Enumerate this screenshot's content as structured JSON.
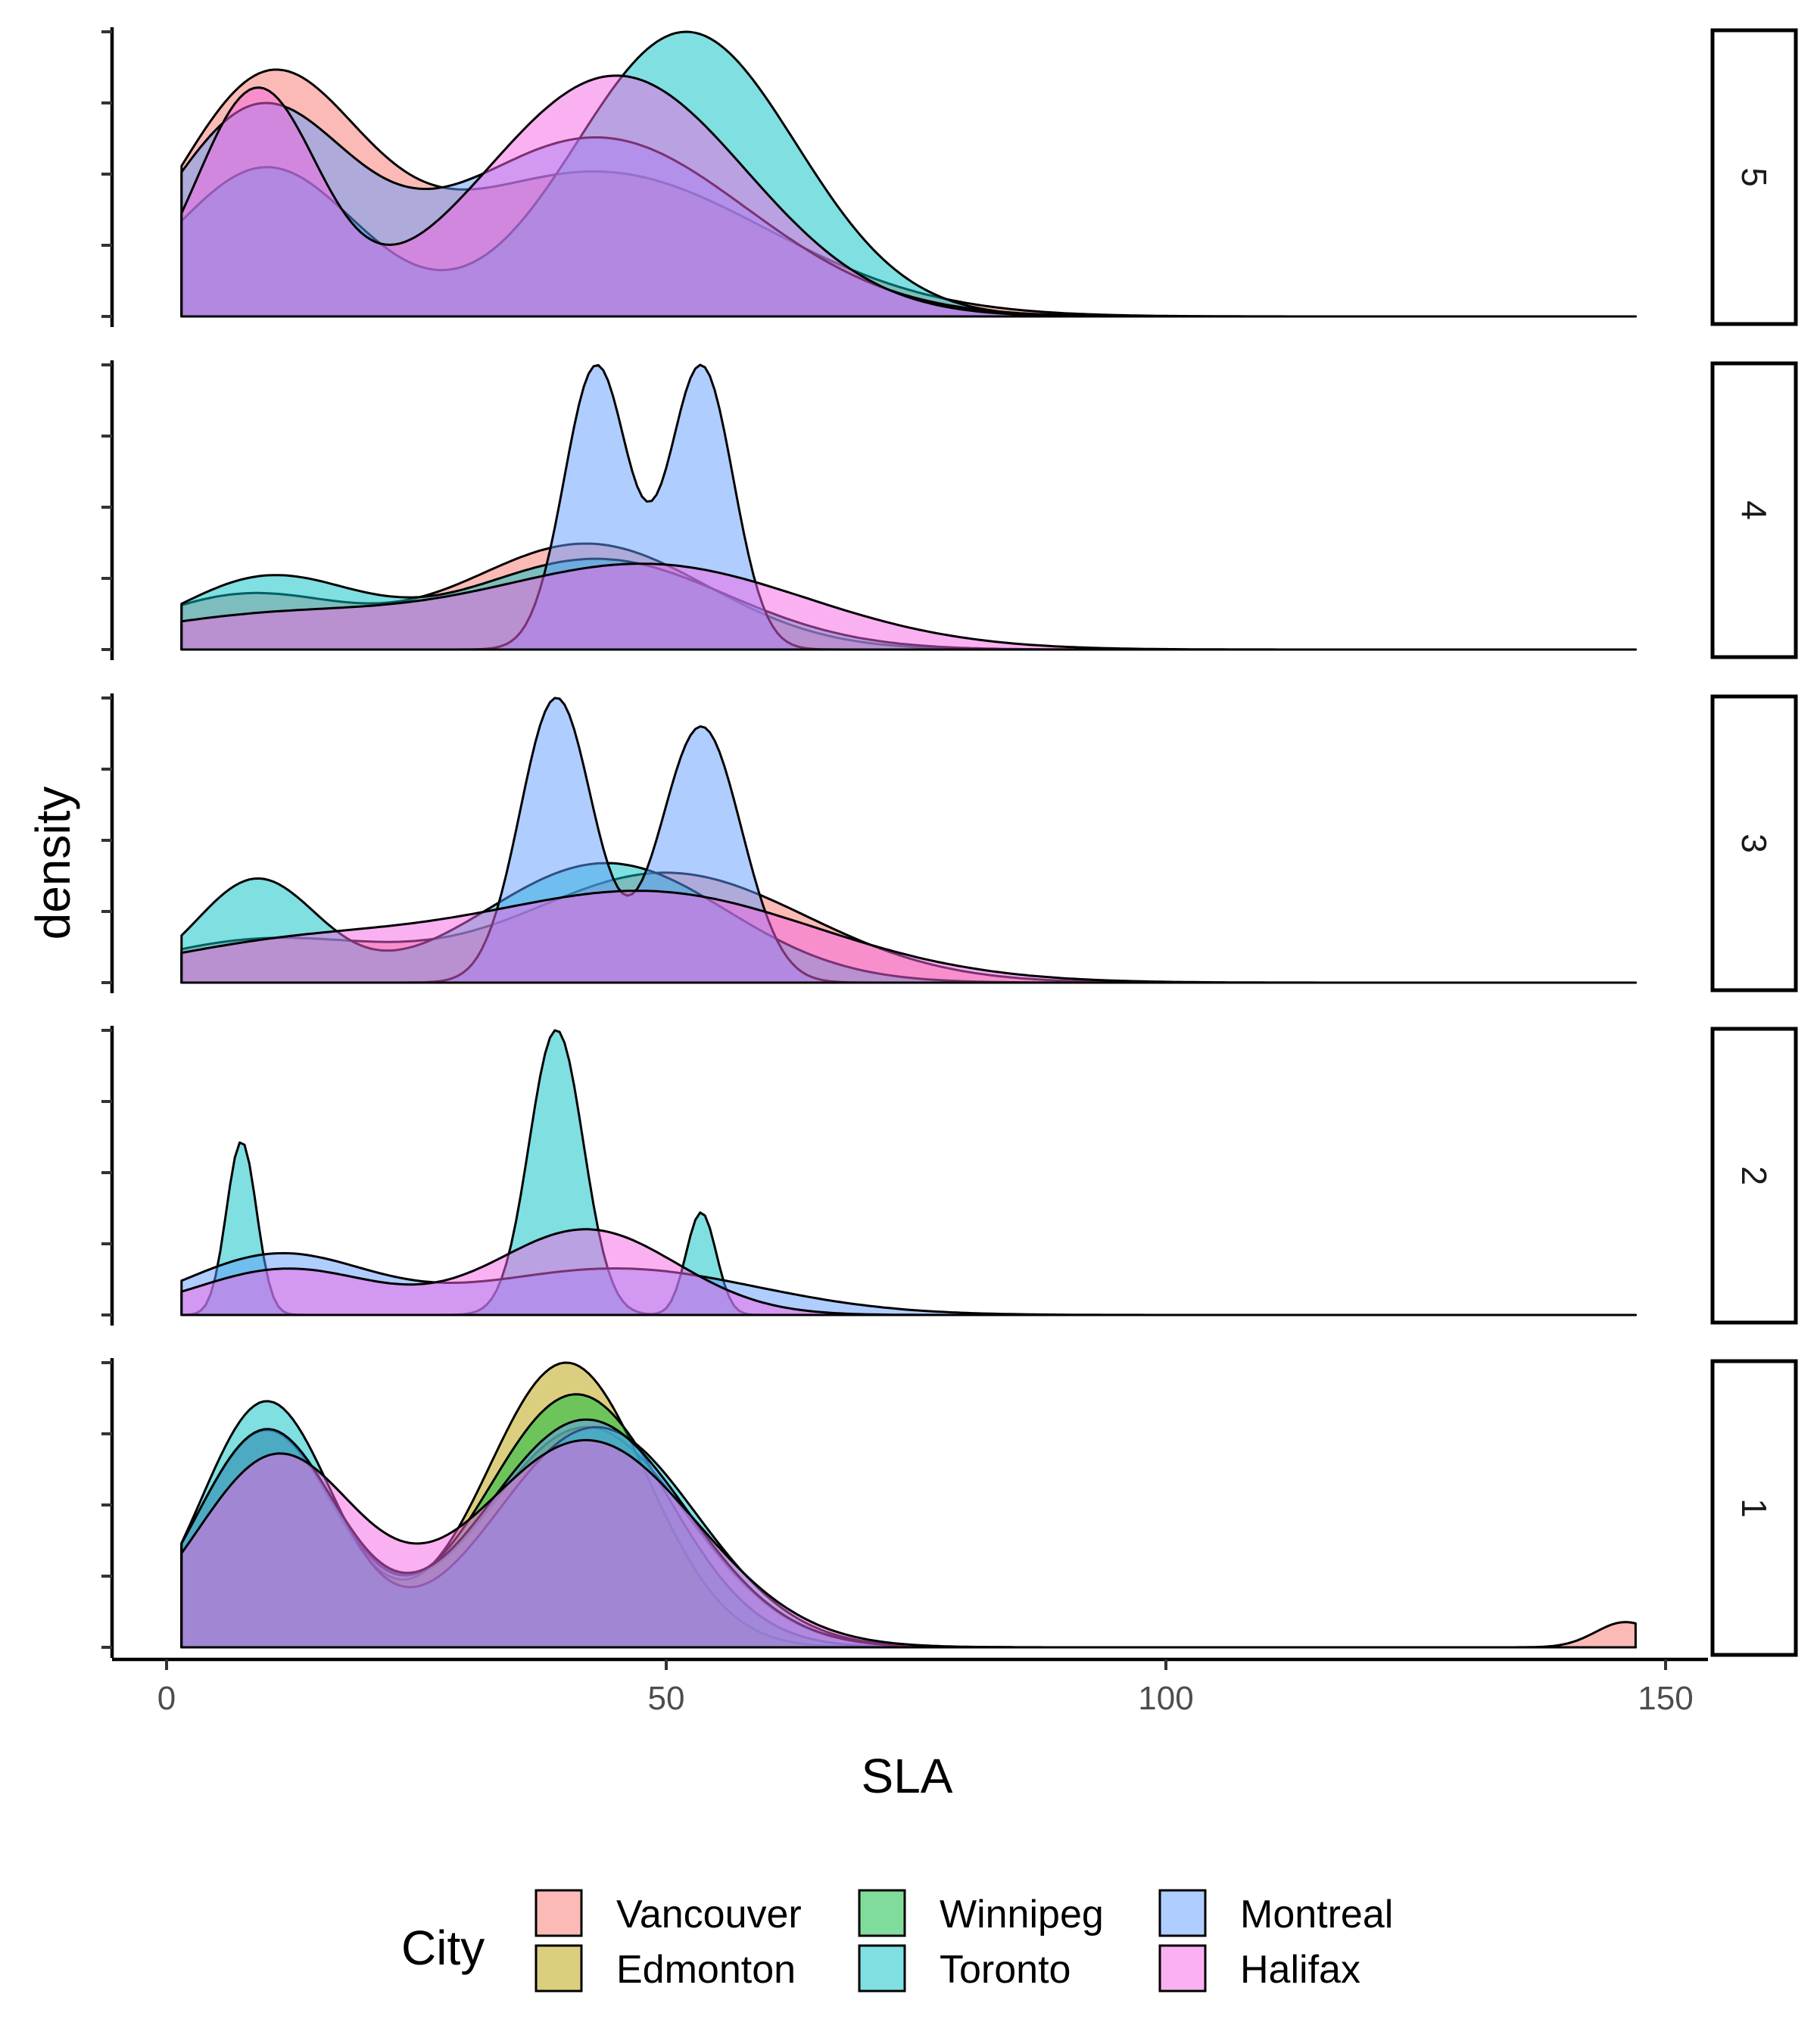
{
  "chart_data": {
    "type": "area",
    "subtype": "faceted-density",
    "xlabel": "SLA",
    "ylabel": "density",
    "xlim": [
      -5,
      155
    ],
    "x_ticks": [
      0,
      50,
      100,
      150
    ],
    "x_tick_labels": [
      "0",
      "50",
      "100",
      "150"
    ],
    "y_ticks_per_panel": 5,
    "y_tick_labels_shown": false,
    "grid": false,
    "legend": {
      "title": "City",
      "position": "bottom",
      "entries": [
        "Vancouver",
        "Edmonton",
        "Winnipeg",
        "Toronto",
        "Montreal",
        "Halifax"
      ]
    },
    "colors": {
      "Vancouver": "#F8766D",
      "Edmonton": "#B79F00",
      "Winnipeg": "#00BA38",
      "Toronto": "#00BFC4",
      "Montreal": "#619CFF",
      "Halifax": "#F564E3"
    },
    "fill_opacity": 0.5,
    "panels": [
      {
        "label": "5",
        "series": [
          {
            "name": "Vancouver",
            "components": [
              {
                "w": 0.45,
                "mu": 10,
                "sd": 9
              },
              {
                "w": 0.55,
                "mu": 43,
                "sd": 17
              }
            ]
          },
          {
            "name": "Toronto",
            "components": [
              {
                "w": 0.3,
                "mu": 10,
                "sd": 9
              },
              {
                "w": 0.7,
                "mu": 52,
                "sd": 11
              }
            ]
          },
          {
            "name": "Montreal",
            "components": [
              {
                "w": 0.4,
                "mu": 9,
                "sd": 9
              },
              {
                "w": 0.6,
                "mu": 43,
                "sd": 15
              }
            ]
          },
          {
            "name": "Halifax",
            "components": [
              {
                "w": 0.3,
                "mu": 9,
                "sd": 6
              },
              {
                "w": 0.7,
                "mu": 45,
                "sd": 13
              }
            ]
          }
        ]
      },
      {
        "label": "4",
        "series": [
          {
            "name": "Vancouver",
            "components": [
              {
                "w": 0.3,
                "mu": 8,
                "sd": 10
              },
              {
                "w": 0.7,
                "mu": 42,
                "sd": 12
              }
            ]
          },
          {
            "name": "Toronto",
            "components": [
              {
                "w": 0.35,
                "mu": 10,
                "sd": 9
              },
              {
                "w": 0.65,
                "mu": 43,
                "sd": 13
              }
            ]
          },
          {
            "name": "Montreal",
            "components": [
              {
                "w": 0.5,
                "mu": 43,
                "sd": 3.2
              },
              {
                "w": 0.5,
                "mu": 53.5,
                "sd": 3.2
              }
            ]
          },
          {
            "name": "Halifax",
            "components": [
              {
                "w": 0.25,
                "mu": 10,
                "sd": 14
              },
              {
                "w": 0.75,
                "mu": 48,
                "sd": 16
              }
            ]
          }
        ]
      },
      {
        "label": "3",
        "series": [
          {
            "name": "Vancouver",
            "components": [
              {
                "w": 0.25,
                "mu": 10,
                "sd": 12
              },
              {
                "w": 0.75,
                "mu": 50,
                "sd": 14
              }
            ]
          },
          {
            "name": "Toronto",
            "components": [
              {
                "w": 0.3,
                "mu": 9,
                "sd": 6
              },
              {
                "w": 0.7,
                "mu": 44,
                "sd": 12
              }
            ]
          },
          {
            "name": "Montreal",
            "components": [
              {
                "w": 0.5,
                "mu": 39,
                "sd": 3.6
              },
              {
                "w": 0.5,
                "mu": 53.5,
                "sd": 4
              }
            ]
          },
          {
            "name": "Halifax",
            "components": [
              {
                "w": 0.25,
                "mu": 12,
                "sd": 14
              },
              {
                "w": 0.75,
                "mu": 48,
                "sd": 17
              }
            ]
          }
        ]
      },
      {
        "label": "2",
        "series": [
          {
            "name": "Toronto",
            "components": [
              {
                "w": 0.22,
                "mu": 7.5,
                "sd": 1.5
              },
              {
                "w": 0.65,
                "mu": 39,
                "sd": 2.7
              },
              {
                "w": 0.13,
                "mu": 53.5,
                "sd": 1.5
              }
            ]
          },
          {
            "name": "Montreal",
            "components": [
              {
                "w": 0.45,
                "mu": 11,
                "sd": 9
              },
              {
                "w": 0.55,
                "mu": 45,
                "sd": 14
              }
            ]
          },
          {
            "name": "Halifax",
            "components": [
              {
                "w": 0.35,
                "mu": 12,
                "sd": 9
              },
              {
                "w": 0.65,
                "mu": 42,
                "sd": 9
              }
            ]
          }
        ]
      },
      {
        "label": "1",
        "series": [
          {
            "name": "Vancouver",
            "components": [
              {
                "w": 0.4,
                "mu": 10,
                "sd": 7
              },
              {
                "w": 0.58,
                "mu": 42,
                "sd": 10
              },
              {
                "w": 0.02,
                "mu": 146,
                "sd": 3
              }
            ]
          },
          {
            "name": "Edmonton",
            "components": [
              {
                "w": 0.4,
                "mu": 10,
                "sd": 7
              },
              {
                "w": 0.6,
                "mu": 40,
                "sd": 8
              }
            ]
          },
          {
            "name": "Winnipeg",
            "components": [
              {
                "w": 0.4,
                "mu": 10,
                "sd": 7
              },
              {
                "w": 0.6,
                "mu": 41,
                "sd": 9
              }
            ]
          },
          {
            "name": "Toronto",
            "components": [
              {
                "w": 0.42,
                "mu": 10,
                "sd": 6.5
              },
              {
                "w": 0.58,
                "mu": 43,
                "sd": 10
              }
            ]
          },
          {
            "name": "Montreal",
            "components": [
              {
                "w": 0.4,
                "mu": 10,
                "sd": 7
              },
              {
                "w": 0.6,
                "mu": 42,
                "sd": 10
              }
            ]
          },
          {
            "name": "Halifax",
            "components": [
              {
                "w": 0.4,
                "mu": 11,
                "sd": 8
              },
              {
                "w": 0.6,
                "mu": 42,
                "sd": 11
              }
            ]
          }
        ]
      }
    ],
    "x_range_of_densities": [
      1.5,
      147
    ]
  }
}
